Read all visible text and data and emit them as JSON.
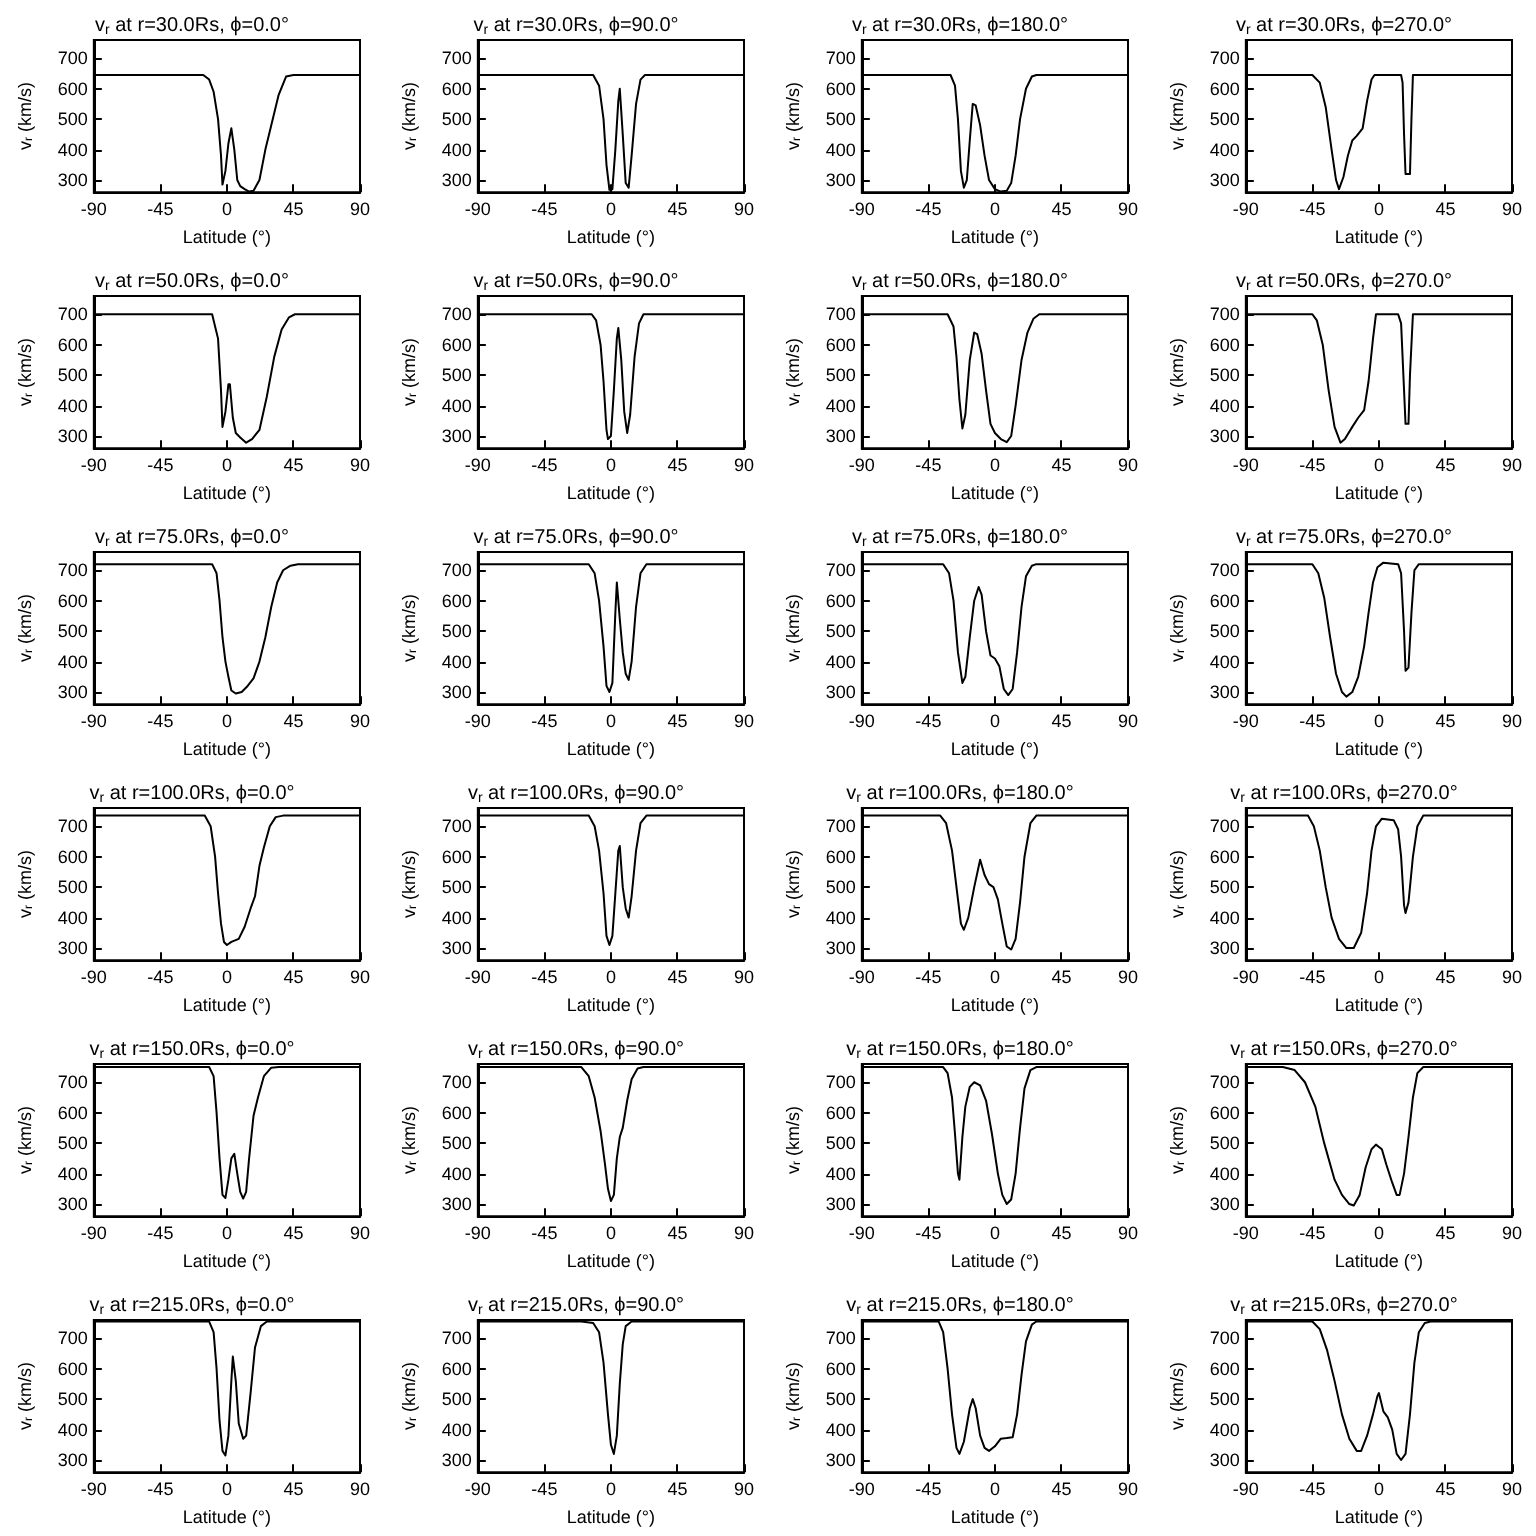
{
  "chart_data": [
    {
      "type": "line",
      "title": "v$_{r}$ at r=30.0Rs, ϕ=0.0°",
      "xlabel": "Latitude (°)",
      "ylabel": "v$_{r}$ (km/s)",
      "xlim": [
        -90,
        90
      ],
      "ylim": [
        260,
        760
      ],
      "xticks": [
        -90,
        -45,
        0,
        45,
        90
      ],
      "yticks": [
        300,
        400,
        500,
        600,
        700
      ],
      "marker": "none",
      "grid": false,
      "series": [
        {
          "color": "#000000",
          "x": [
            -90,
            -16,
            -12,
            -9,
            -6,
            -4,
            -3,
            -1,
            1,
            3,
            5,
            7,
            9,
            12,
            15,
            18,
            22,
            26,
            30,
            35,
            40,
            45,
            90
          ],
          "values": [
            645,
            645,
            630,
            590,
            500,
            380,
            285,
            330,
            420,
            470,
            400,
            300,
            280,
            270,
            262,
            265,
            300,
            400,
            480,
            580,
            640,
            645,
            645
          ]
        }
      ]
    },
    {
      "type": "line",
      "title": "v$_{r}$ at r=30.0Rs, ϕ=90.0°",
      "xlabel": "Latitude (°)",
      "ylabel": "v$_{r}$ (km/s)",
      "xlim": [
        -90,
        90
      ],
      "ylim": [
        260,
        760
      ],
      "xticks": [
        -90,
        -45,
        0,
        45,
        90
      ],
      "yticks": [
        300,
        400,
        500,
        600,
        700
      ],
      "marker": "none",
      "grid": false,
      "series": [
        {
          "color": "#000000",
          "x": [
            -90,
            -12,
            -8,
            -5,
            -3,
            -1,
            1,
            3,
            5,
            6,
            8,
            10,
            12,
            14,
            17,
            20,
            23,
            90
          ],
          "values": [
            645,
            645,
            610,
            500,
            350,
            268,
            270,
            400,
            560,
            600,
            450,
            290,
            275,
            380,
            550,
            630,
            645,
            645
          ]
        }
      ]
    },
    {
      "type": "line",
      "title": "v$_{r}$ at r=30.0Rs, ϕ=180.0°",
      "xlabel": "Latitude (°)",
      "ylabel": "v$_{r}$ (km/s)",
      "xlim": [
        -90,
        90
      ],
      "ylim": [
        260,
        760
      ],
      "xticks": [
        -90,
        -45,
        0,
        45,
        90
      ],
      "yticks": [
        300,
        400,
        500,
        600,
        700
      ],
      "marker": "none",
      "grid": false,
      "series": [
        {
          "color": "#000000",
          "x": [
            -90,
            -30,
            -27,
            -25,
            -23,
            -21,
            -19,
            -17,
            -15,
            -13,
            -10,
            -7,
            -4,
            0,
            4,
            8,
            11,
            14,
            17,
            21,
            25,
            28,
            90
          ],
          "values": [
            645,
            645,
            610,
            500,
            330,
            275,
            300,
            430,
            550,
            545,
            480,
            380,
            300,
            270,
            262,
            265,
            290,
            380,
            500,
            600,
            640,
            645,
            645
          ]
        }
      ]
    },
    {
      "type": "line",
      "title": "v$_{r}$ at r=30.0Rs, ϕ=270.0°",
      "xlabel": "Latitude (°)",
      "ylabel": "v$_{r}$ (km/s)",
      "xlim": [
        -90,
        90
      ],
      "ylim": [
        260,
        760
      ],
      "xticks": [
        -90,
        -45,
        0,
        45,
        90
      ],
      "yticks": [
        300,
        400,
        500,
        600,
        700
      ],
      "marker": "none",
      "grid": false,
      "series": [
        {
          "color": "#000000",
          "x": [
            -90,
            -45,
            -40,
            -36,
            -32,
            -29,
            -27,
            -24,
            -21,
            -18,
            -15,
            -11,
            -8,
            -5,
            -3,
            15,
            16,
            17,
            18,
            21,
            22,
            23,
            90
          ],
          "values": [
            645,
            645,
            620,
            540,
            400,
            300,
            270,
            310,
            380,
            430,
            445,
            470,
            560,
            630,
            645,
            645,
            620,
            450,
            320,
            320,
            500,
            645,
            645
          ]
        }
      ]
    },
    {
      "type": "line",
      "title": "v$_{r}$ at r=50.0Rs, ϕ=0.0°",
      "xlabel": "Latitude (°)",
      "ylabel": "v$_{r}$ (km/s)",
      "xlim": [
        -90,
        90
      ],
      "ylim": [
        260,
        760
      ],
      "xticks": [
        -90,
        -45,
        0,
        45,
        90
      ],
      "yticks": [
        300,
        400,
        500,
        600,
        700
      ],
      "marker": "none",
      "grid": false,
      "series": [
        {
          "color": "#000000",
          "x": [
            -90,
            -10,
            -6,
            -4,
            -3,
            -1,
            1,
            2,
            4,
            6,
            9,
            13,
            17,
            22,
            27,
            32,
            37,
            42,
            46,
            90
          ],
          "values": [
            700,
            700,
            620,
            450,
            330,
            380,
            470,
            470,
            360,
            310,
            295,
            278,
            290,
            320,
            430,
            560,
            650,
            690,
            700,
            700
          ]
        }
      ]
    },
    {
      "type": "line",
      "title": "v$_{r}$ at r=50.0Rs, ϕ=90.0°",
      "xlabel": "Latitude (°)",
      "ylabel": "v$_{r}$ (km/s)",
      "xlim": [
        -90,
        90
      ],
      "ylim": [
        260,
        760
      ],
      "xticks": [
        -90,
        -45,
        0,
        45,
        90
      ],
      "yticks": [
        300,
        400,
        500,
        600,
        700
      ],
      "marker": "none",
      "grid": false,
      "series": [
        {
          "color": "#000000",
          "x": [
            -90,
            -13,
            -10,
            -7,
            -5,
            -3,
            -2,
            0,
            2,
            4,
            5,
            7,
            9,
            11,
            13,
            16,
            19,
            22,
            90
          ],
          "values": [
            700,
            700,
            680,
            600,
            480,
            320,
            290,
            300,
            450,
            620,
            655,
            550,
            380,
            310,
            370,
            560,
            670,
            700,
            700
          ]
        }
      ]
    },
    {
      "type": "line",
      "title": "v$_{r}$ at r=50.0Rs, ϕ=180.0°",
      "xlabel": "Latitude (°)",
      "ylabel": "v$_{r}$ (km/s)",
      "xlim": [
        -90,
        90
      ],
      "ylim": [
        260,
        760
      ],
      "xticks": [
        -90,
        -45,
        0,
        45,
        90
      ],
      "yticks": [
        300,
        400,
        500,
        600,
        700
      ],
      "marker": "none",
      "grid": false,
      "series": [
        {
          "color": "#000000",
          "x": [
            -90,
            -32,
            -28,
            -26,
            -24,
            -22,
            -20,
            -17,
            -14,
            -12,
            -9,
            -6,
            -3,
            0,
            4,
            8,
            11,
            14,
            18,
            22,
            26,
            30,
            90
          ],
          "values": [
            700,
            700,
            660,
            560,
            420,
            325,
            370,
            550,
            640,
            635,
            570,
            450,
            340,
            310,
            290,
            280,
            300,
            400,
            550,
            640,
            685,
            700,
            700
          ]
        }
      ]
    },
    {
      "type": "line",
      "title": "v$_{r}$ at r=50.0Rs, ϕ=270.0°",
      "xlabel": "Latitude (°)",
      "ylabel": "v$_{r}$ (km/s)",
      "xlim": [
        -90,
        90
      ],
      "ylim": [
        260,
        760
      ],
      "xticks": [
        -90,
        -45,
        0,
        45,
        90
      ],
      "yticks": [
        300,
        400,
        500,
        600,
        700
      ],
      "marker": "none",
      "grid": false,
      "series": [
        {
          "color": "#000000",
          "x": [
            -90,
            -45,
            -42,
            -38,
            -34,
            -30,
            -26,
            -23,
            -18,
            -14,
            -10,
            -7,
            -4,
            -2,
            13,
            15,
            17,
            18,
            20,
            21,
            23,
            90
          ],
          "values": [
            700,
            700,
            680,
            600,
            450,
            330,
            278,
            290,
            330,
            360,
            385,
            480,
            620,
            700,
            700,
            670,
            450,
            340,
            340,
            500,
            700,
            700
          ]
        }
      ]
    },
    {
      "type": "line",
      "title": "v$_{r}$ at r=75.0Rs, ϕ=0.0°",
      "xlabel": "Latitude (°)",
      "ylabel": "v$_{r}$ (km/s)",
      "xlim": [
        -90,
        90
      ],
      "ylim": [
        260,
        760
      ],
      "xticks": [
        -90,
        -45,
        0,
        45,
        90
      ],
      "yticks": [
        300,
        400,
        500,
        600,
        700
      ],
      "marker": "none",
      "grid": false,
      "series": [
        {
          "color": "#000000",
          "x": [
            -90,
            -10,
            -7,
            -5,
            -3,
            -1,
            1,
            3,
            6,
            10,
            14,
            18,
            22,
            26,
            30,
            34,
            38,
            43,
            48,
            90
          ],
          "values": [
            720,
            720,
            690,
            600,
            480,
            400,
            350,
            305,
            295,
            300,
            320,
            345,
            400,
            480,
            580,
            660,
            700,
            715,
            720,
            720
          ]
        }
      ]
    },
    {
      "type": "line",
      "title": "v$_{r}$ at r=75.0Rs, ϕ=90.0°",
      "xlabel": "Latitude (°)",
      "ylabel": "v$_{r}$ (km/s)",
      "xlim": [
        -90,
        90
      ],
      "ylim": [
        260,
        760
      ],
      "xticks": [
        -90,
        -45,
        0,
        45,
        90
      ],
      "yticks": [
        300,
        400,
        500,
        600,
        700
      ],
      "marker": "none",
      "grid": false,
      "series": [
        {
          "color": "#000000",
          "x": [
            -90,
            -15,
            -11,
            -8,
            -5,
            -3,
            -1,
            1,
            3,
            4,
            6,
            8,
            10,
            12,
            14,
            17,
            20,
            24,
            90
          ],
          "values": [
            720,
            720,
            690,
            600,
            450,
            320,
            300,
            330,
            560,
            660,
            540,
            430,
            360,
            340,
            400,
            580,
            690,
            720,
            720
          ]
        }
      ]
    },
    {
      "type": "line",
      "title": "v$_{r}$ at r=75.0Rs, ϕ=180.0°",
      "xlabel": "Latitude (°)",
      "ylabel": "v$_{r}$ (km/s)",
      "xlim": [
        -90,
        90
      ],
      "ylim": [
        260,
        760
      ],
      "xticks": [
        -90,
        -45,
        0,
        45,
        90
      ],
      "yticks": [
        300,
        400,
        500,
        600,
        700
      ],
      "marker": "none",
      "grid": false,
      "series": [
        {
          "color": "#000000",
          "x": [
            -90,
            -35,
            -31,
            -28,
            -25,
            -22,
            -20,
            -17,
            -14,
            -11,
            -9,
            -6,
            -3,
            0,
            3,
            6,
            9,
            12,
            15,
            18,
            21,
            25,
            28,
            90
          ],
          "values": [
            720,
            720,
            690,
            600,
            430,
            330,
            350,
            480,
            600,
            645,
            620,
            500,
            420,
            410,
            385,
            310,
            290,
            310,
            430,
            580,
            680,
            715,
            720,
            720
          ]
        }
      ]
    },
    {
      "type": "line",
      "title": "v$_{r}$ at r=75.0Rs, ϕ=270.0°",
      "xlabel": "Latitude (°)",
      "ylabel": "v$_{r}$ (km/s)",
      "xlim": [
        -90,
        90
      ],
      "ylim": [
        260,
        760
      ],
      "xticks": [
        -90,
        -45,
        0,
        45,
        90
      ],
      "yticks": [
        300,
        400,
        500,
        600,
        700
      ],
      "marker": "none",
      "grid": false,
      "series": [
        {
          "color": "#000000",
          "x": [
            -90,
            -45,
            -41,
            -37,
            -33,
            -29,
            -25,
            -22,
            -18,
            -14,
            -10,
            -7,
            -4,
            -1,
            3,
            13,
            15,
            17,
            18,
            20,
            22,
            24,
            27,
            90
          ],
          "values": [
            720,
            720,
            690,
            610,
            480,
            360,
            300,
            285,
            300,
            350,
            450,
            560,
            660,
            710,
            725,
            720,
            690,
            500,
            370,
            380,
            560,
            700,
            720,
            720
          ]
        }
      ]
    },
    {
      "type": "line",
      "title": "v$_{r}$ at r=100.0Rs, ϕ=0.0°",
      "xlabel": "Latitude (°)",
      "ylabel": "v$_{r}$ (km/s)",
      "xlim": [
        -90,
        90
      ],
      "ylim": [
        260,
        760
      ],
      "xticks": [
        -90,
        -45,
        0,
        45,
        90
      ],
      "yticks": [
        300,
        400,
        500,
        600,
        700
      ],
      "marker": "none",
      "grid": false,
      "series": [
        {
          "color": "#000000",
          "x": [
            -90,
            -15,
            -11,
            -8,
            -6,
            -4,
            -2,
            0,
            3,
            8,
            12,
            16,
            19,
            22,
            25,
            29,
            33,
            38,
            90
          ],
          "values": [
            735,
            735,
            700,
            600,
            480,
            380,
            320,
            310,
            320,
            330,
            370,
            430,
            470,
            570,
            630,
            700,
            730,
            735,
            735
          ]
        }
      ]
    },
    {
      "type": "line",
      "title": "v$_{r}$ at r=100.0Rs, ϕ=90.0°",
      "xlabel": "Latitude (°)",
      "ylabel": "v$_{r}$ (km/s)",
      "xlim": [
        -90,
        90
      ],
      "ylim": [
        260,
        760
      ],
      "xticks": [
        -90,
        -45,
        0,
        45,
        90
      ],
      "yticks": [
        300,
        400,
        500,
        600,
        700
      ],
      "marker": "none",
      "grid": false,
      "series": [
        {
          "color": "#000000",
          "x": [
            -90,
            -15,
            -11,
            -8,
            -5,
            -3,
            -1,
            1,
            3,
            5,
            6,
            8,
            10,
            12,
            14,
            17,
            20,
            24,
            90
          ],
          "values": [
            735,
            735,
            700,
            620,
            480,
            340,
            310,
            340,
            480,
            620,
            635,
            500,
            430,
            400,
            470,
            620,
            710,
            735,
            735
          ]
        }
      ]
    },
    {
      "type": "line",
      "title": "v$_{r}$ at r=100.0Rs, ϕ=180.0°",
      "xlabel": "Latitude (°)",
      "ylabel": "v$_{r}$ (km/s)",
      "xlim": [
        -90,
        90
      ],
      "ylim": [
        260,
        760
      ],
      "xticks": [
        -90,
        -45,
        0,
        45,
        90
      ],
      "yticks": [
        300,
        400,
        500,
        600,
        700
      ],
      "marker": "none",
      "grid": false,
      "series": [
        {
          "color": "#000000",
          "x": [
            -90,
            -37,
            -33,
            -29,
            -26,
            -23,
            -21,
            -18,
            -14,
            -10,
            -7,
            -4,
            -1,
            2,
            5,
            8,
            11,
            14,
            17,
            20,
            24,
            28,
            90
          ],
          "values": [
            735,
            735,
            710,
            620,
            500,
            380,
            360,
            400,
            500,
            590,
            540,
            510,
            500,
            460,
            380,
            305,
            295,
            330,
            450,
            600,
            710,
            735,
            735
          ]
        }
      ]
    },
    {
      "type": "line",
      "title": "v$_{r}$ at r=100.0Rs, ϕ=270.0°",
      "xlabel": "Latitude (°)",
      "ylabel": "v$_{r}$ (km/s)",
      "xlim": [
        -90,
        90
      ],
      "ylim": [
        260,
        760
      ],
      "xticks": [
        -90,
        -45,
        0,
        45,
        90
      ],
      "yticks": [
        300,
        400,
        500,
        600,
        700
      ],
      "marker": "none",
      "grid": false,
      "series": [
        {
          "color": "#000000",
          "x": [
            -90,
            -48,
            -44,
            -40,
            -36,
            -32,
            -27,
            -22,
            -17,
            -12,
            -8,
            -5,
            -2,
            2,
            10,
            13,
            15,
            17,
            18,
            20,
            23,
            26,
            30,
            90
          ],
          "values": [
            735,
            735,
            700,
            620,
            500,
            400,
            330,
            300,
            300,
            350,
            480,
            620,
            700,
            725,
            720,
            690,
            600,
            440,
            415,
            450,
            600,
            700,
            735,
            735
          ]
        }
      ]
    },
    {
      "type": "line",
      "title": "v$_{r}$ at r=150.0Rs, ϕ=0.0°",
      "xlabel": "Latitude (°)",
      "ylabel": "v$_{r}$ (km/s)",
      "xlim": [
        -90,
        90
      ],
      "ylim": [
        260,
        760
      ],
      "xticks": [
        -90,
        -45,
        0,
        45,
        90
      ],
      "yticks": [
        300,
        400,
        500,
        600,
        700
      ],
      "marker": "none",
      "grid": false,
      "series": [
        {
          "color": "#000000",
          "x": [
            -90,
            -12,
            -9,
            -7,
            -5,
            -3,
            -1,
            1,
            3,
            5,
            7,
            9,
            11,
            13,
            15,
            18,
            21,
            25,
            30,
            35,
            90
          ],
          "values": [
            750,
            750,
            720,
            600,
            450,
            330,
            320,
            380,
            450,
            465,
            400,
            340,
            318,
            340,
            450,
            590,
            650,
            720,
            748,
            750,
            750
          ]
        }
      ]
    },
    {
      "type": "line",
      "title": "v$_{r}$ at r=150.0Rs, ϕ=90.0°",
      "xlabel": "Latitude (°)",
      "ylabel": "v$_{r}$ (km/s)",
      "xlim": [
        -90,
        90
      ],
      "ylim": [
        260,
        760
      ],
      "xticks": [
        -90,
        -45,
        0,
        45,
        90
      ],
      "yticks": [
        300,
        400,
        500,
        600,
        700
      ],
      "marker": "none",
      "grid": false,
      "series": [
        {
          "color": "#000000",
          "x": [
            -90,
            -20,
            -15,
            -11,
            -7,
            -4,
            -2,
            0,
            2,
            4,
            6,
            8,
            11,
            14,
            18,
            22,
            90
          ],
          "values": [
            750,
            750,
            720,
            650,
            540,
            430,
            350,
            310,
            330,
            450,
            520,
            550,
            640,
            710,
            745,
            750,
            750
          ]
        }
      ]
    },
    {
      "type": "line",
      "title": "v$_{r}$ at r=150.0Rs, ϕ=180.0°",
      "xlabel": "Latitude (°)",
      "ylabel": "v$_{r}$ (km/s)",
      "xlim": [
        -90,
        90
      ],
      "ylim": [
        260,
        760
      ],
      "xticks": [
        -90,
        -45,
        0,
        45,
        90
      ],
      "yticks": [
        300,
        400,
        500,
        600,
        700
      ],
      "marker": "none",
      "grid": false,
      "series": [
        {
          "color": "#000000",
          "x": [
            -90,
            -35,
            -32,
            -29,
            -27,
            -25,
            -24,
            -22,
            -20,
            -17,
            -14,
            -10,
            -6,
            -2,
            2,
            5,
            8,
            11,
            14,
            17,
            20,
            24,
            28,
            90
          ],
          "values": [
            750,
            750,
            730,
            650,
            530,
            400,
            380,
            520,
            620,
            685,
            700,
            690,
            640,
            530,
            400,
            330,
            300,
            315,
            400,
            550,
            680,
            740,
            750,
            750
          ]
        }
      ]
    },
    {
      "type": "line",
      "title": "v$_{r}$ at r=150.0Rs, ϕ=270.0°",
      "xlabel": "Latitude (°)",
      "ylabel": "v$_{r}$ (km/s)",
      "xlim": [
        -90,
        90
      ],
      "ylim": [
        260,
        760
      ],
      "xticks": [
        -90,
        -45,
        0,
        45,
        90
      ],
      "yticks": [
        300,
        400,
        500,
        600,
        700
      ],
      "marker": "none",
      "grid": false,
      "series": [
        {
          "color": "#000000",
          "x": [
            -90,
            -65,
            -57,
            -50,
            -43,
            -37,
            -30,
            -25,
            -20,
            -17,
            -13,
            -9,
            -5,
            -2,
            2,
            5,
            9,
            12,
            14,
            17,
            20,
            23,
            26,
            30,
            90
          ],
          "values": [
            750,
            750,
            740,
            700,
            620,
            500,
            380,
            330,
            300,
            295,
            330,
            420,
            480,
            495,
            480,
            430,
            370,
            330,
            330,
            400,
            520,
            650,
            730,
            750,
            750
          ]
        }
      ]
    },
    {
      "type": "line",
      "title": "v$_{r}$ at r=215.0Rs, ϕ=0.0°",
      "xlabel": "Latitude (°)",
      "ylabel": "v$_{r}$ (km/s)",
      "xlim": [
        -90,
        90
      ],
      "ylim": [
        260,
        760
      ],
      "xticks": [
        -90,
        -45,
        0,
        45,
        90
      ],
      "yticks": [
        300,
        400,
        500,
        600,
        700
      ],
      "marker": "none",
      "grid": false,
      "series": [
        {
          "color": "#000000",
          "x": [
            -90,
            -12,
            -9,
            -7,
            -5,
            -3,
            -1,
            1,
            3,
            4,
            6,
            8,
            11,
            13,
            16,
            19,
            23,
            27,
            90
          ],
          "values": [
            755,
            755,
            720,
            600,
            430,
            330,
            315,
            380,
            560,
            640,
            560,
            420,
            370,
            380,
            520,
            670,
            740,
            755,
            755
          ]
        }
      ]
    },
    {
      "type": "line",
      "title": "v$_{r}$ at r=215.0Rs, ϕ=90.0°",
      "xlabel": "Latitude (°)",
      "ylabel": "v$_{r}$ (km/s)",
      "xlim": [
        -90,
        90
      ],
      "ylim": [
        260,
        760
      ],
      "xticks": [
        -90,
        -45,
        0,
        45,
        90
      ],
      "yticks": [
        300,
        400,
        500,
        600,
        700
      ],
      "marker": "none",
      "grid": false,
      "series": [
        {
          "color": "#000000",
          "x": [
            -90,
            -20,
            -12,
            -8,
            -5,
            -2,
            0,
            2,
            4,
            6,
            8,
            10,
            14,
            90
          ],
          "values": [
            755,
            755,
            750,
            720,
            620,
            450,
            350,
            320,
            380,
            550,
            680,
            740,
            755,
            755
          ]
        }
      ]
    },
    {
      "type": "line",
      "title": "v$_{r}$ at r=215.0Rs, ϕ=180.0°",
      "xlabel": "Latitude (°)",
      "ylabel": "v$_{r}$ (km/s)",
      "xlim": [
        -90,
        90
      ],
      "ylim": [
        260,
        760
      ],
      "xticks": [
        -90,
        -45,
        0,
        45,
        90
      ],
      "yticks": [
        300,
        400,
        500,
        600,
        700
      ],
      "marker": "none",
      "grid": false,
      "series": [
        {
          "color": "#000000",
          "x": [
            -90,
            -38,
            -35,
            -32,
            -29,
            -26,
            -24,
            -21,
            -17,
            -15,
            -13,
            -10,
            -7,
            -4,
            0,
            4,
            8,
            12,
            15,
            18,
            21,
            25,
            28,
            90
          ],
          "values": [
            755,
            755,
            720,
            600,
            450,
            340,
            320,
            360,
            470,
            500,
            470,
            380,
            340,
            330,
            345,
            370,
            372,
            375,
            450,
            580,
            690,
            745,
            755,
            755
          ]
        }
      ]
    },
    {
      "type": "line",
      "title": "v$_{r}$ at r=215.0Rs, ϕ=270.0°",
      "xlabel": "Latitude (°)",
      "ylabel": "v$_{r}$ (km/s)",
      "xlim": [
        -90,
        90
      ],
      "ylim": [
        260,
        760
      ],
      "xticks": [
        -90,
        -45,
        0,
        45,
        90
      ],
      "yticks": [
        300,
        400,
        500,
        600,
        700
      ],
      "marker": "none",
      "grid": false,
      "series": [
        {
          "color": "#000000",
          "x": [
            -90,
            -45,
            -40,
            -35,
            -30,
            -25,
            -20,
            -15,
            -12,
            -8,
            -4,
            -1,
            0,
            3,
            6,
            9,
            12,
            15,
            18,
            21,
            24,
            27,
            31,
            35,
            90
          ],
          "values": [
            755,
            755,
            730,
            660,
            560,
            450,
            370,
            330,
            330,
            380,
            450,
            510,
            520,
            460,
            440,
            400,
            320,
            300,
            320,
            450,
            620,
            720,
            750,
            755,
            755
          ]
        }
      ]
    }
  ]
}
